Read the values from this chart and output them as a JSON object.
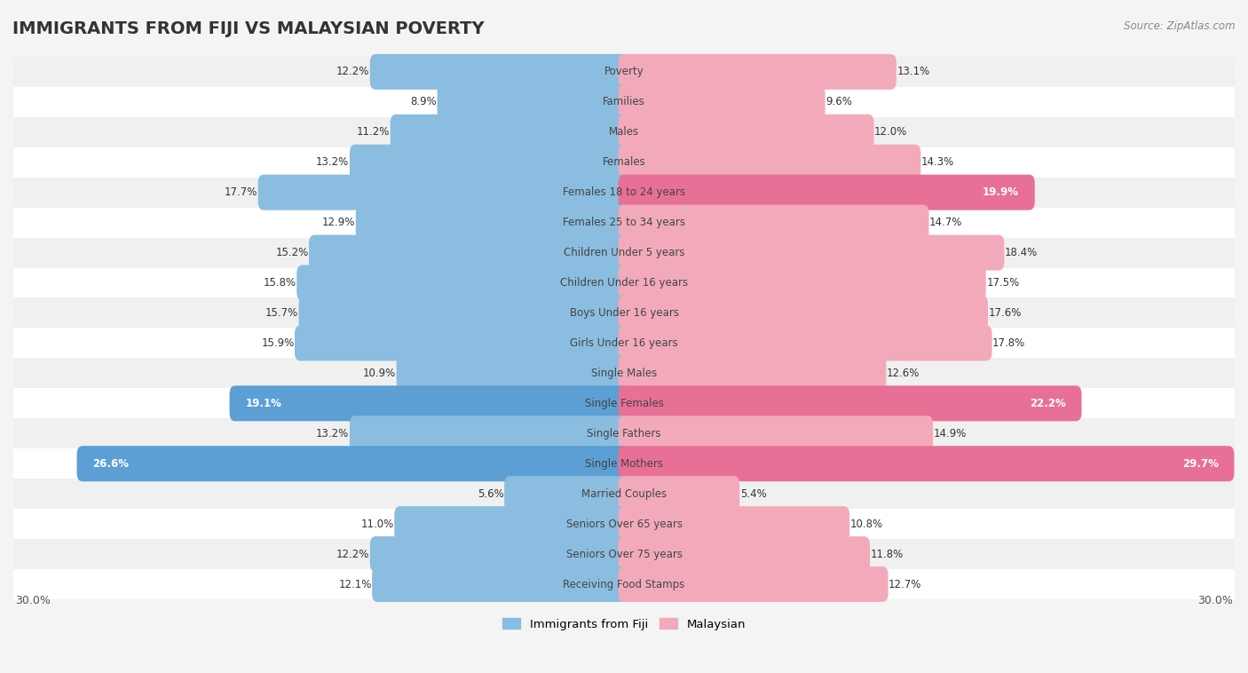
{
  "title": "IMMIGRANTS FROM FIJI VS MALAYSIAN POVERTY",
  "source": "Source: ZipAtlas.com",
  "categories": [
    "Poverty",
    "Families",
    "Males",
    "Females",
    "Females 18 to 24 years",
    "Females 25 to 34 years",
    "Children Under 5 years",
    "Children Under 16 years",
    "Boys Under 16 years",
    "Girls Under 16 years",
    "Single Males",
    "Single Females",
    "Single Fathers",
    "Single Mothers",
    "Married Couples",
    "Seniors Over 65 years",
    "Seniors Over 75 years",
    "Receiving Food Stamps"
  ],
  "fiji_values": [
    12.2,
    8.9,
    11.2,
    13.2,
    17.7,
    12.9,
    15.2,
    15.8,
    15.7,
    15.9,
    10.9,
    19.1,
    13.2,
    26.6,
    5.6,
    11.0,
    12.2,
    12.1
  ],
  "malaysian_values": [
    13.1,
    9.6,
    12.0,
    14.3,
    19.9,
    14.7,
    18.4,
    17.5,
    17.6,
    17.8,
    12.6,
    22.2,
    14.9,
    29.7,
    5.4,
    10.8,
    11.8,
    12.7
  ],
  "fiji_color": "#8bbde0",
  "malaysian_color": "#f2aabb",
  "fiji_highlight_color": "#5b9fd4",
  "malaysian_highlight_color": "#e87096",
  "fiji_highlight_indices": [
    11,
    13
  ],
  "malaysian_highlight_indices": [
    4,
    11,
    13
  ],
  "background_color": "#f4f4f4",
  "row_color_even": "#f0f0f0",
  "row_color_odd": "#ffffff",
  "xlim": 30.0,
  "legend_fiji": "Immigrants from Fiji",
  "legend_malaysian": "Malaysian",
  "title_fontsize": 14,
  "category_fontsize": 8.5,
  "value_fontsize": 8.5
}
